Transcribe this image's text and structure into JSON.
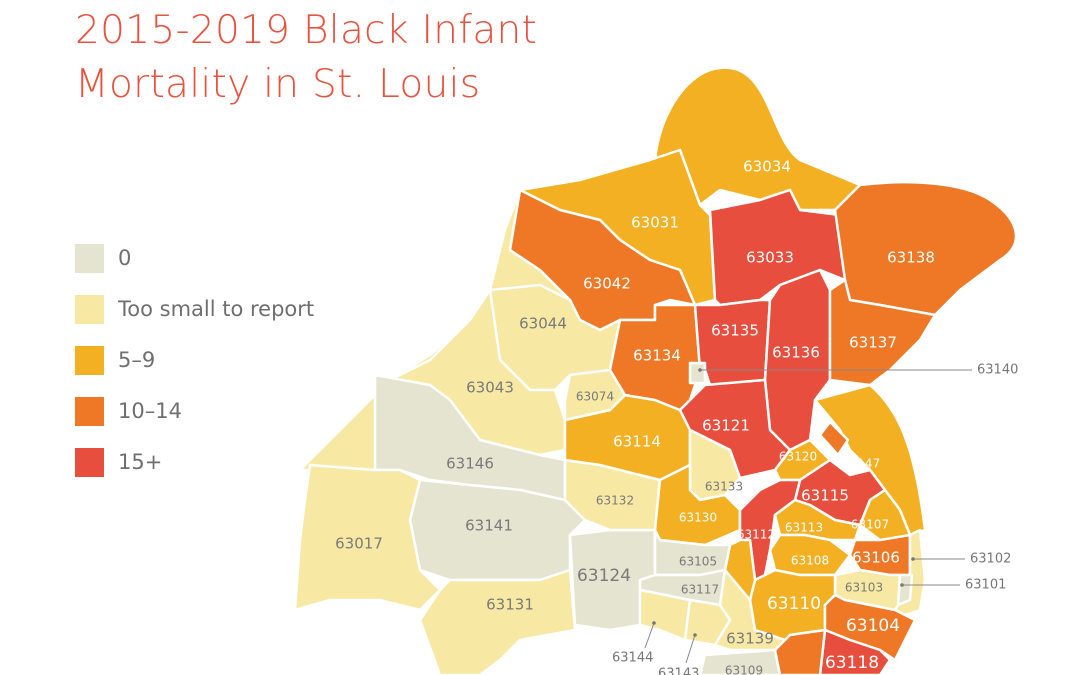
{
  "title": {
    "line1": "2015-2019 Black Infant",
    "line2": "Mortality in St. Louis"
  },
  "legend": [
    {
      "key": "zero",
      "label": "0",
      "color": "#e5e4d0"
    },
    {
      "key": "small",
      "label": "Too small to report",
      "color": "#f7e9a4"
    },
    {
      "key": "low",
      "label": "5–9",
      "color": "#f2b022"
    },
    {
      "key": "mid",
      "label": "10–14",
      "color": "#ee7826"
    },
    {
      "key": "high",
      "label": "15+",
      "color": "#e84e3d"
    }
  ],
  "label_colors": {
    "light": "#7a7a7a",
    "dark": "#ffffff"
  },
  "zips": [
    {
      "zip": "63034",
      "category": "low"
    },
    {
      "zip": "63031",
      "category": "low"
    },
    {
      "zip": "63033",
      "category": "high"
    },
    {
      "zip": "63138",
      "category": "mid"
    },
    {
      "zip": "63042",
      "category": "mid"
    },
    {
      "zip": "63044",
      "category": "small"
    },
    {
      "zip": "63043",
      "category": "small"
    },
    {
      "zip": "63146",
      "category": "zero"
    },
    {
      "zip": "63141",
      "category": "zero"
    },
    {
      "zip": "63017",
      "category": "small"
    },
    {
      "zip": "63131",
      "category": "small"
    },
    {
      "zip": "63124",
      "category": "zero"
    },
    {
      "zip": "63132",
      "category": "small"
    },
    {
      "zip": "63114",
      "category": "low"
    },
    {
      "zip": "63074",
      "category": "small"
    },
    {
      "zip": "63134",
      "category": "mid"
    },
    {
      "zip": "63135",
      "category": "high"
    },
    {
      "zip": "63140",
      "category": "zero"
    },
    {
      "zip": "63136",
      "category": "high"
    },
    {
      "zip": "63137",
      "category": "mid"
    },
    {
      "zip": "63121",
      "category": "high"
    },
    {
      "zip": "63133",
      "category": "small"
    },
    {
      "zip": "63147",
      "category": "low"
    },
    {
      "zip": "63120",
      "category": "low"
    },
    {
      "zip": "63115",
      "category": "high"
    },
    {
      "zip": "63130",
      "category": "low"
    },
    {
      "zip": "63112",
      "category": "high"
    },
    {
      "zip": "63113",
      "category": "low"
    },
    {
      "zip": "63107",
      "category": "low"
    },
    {
      "zip": "63108",
      "category": "low"
    },
    {
      "zip": "63106",
      "category": "mid"
    },
    {
      "zip": "63102",
      "category": "small"
    },
    {
      "zip": "63101",
      "category": "zero"
    },
    {
      "zip": "63103",
      "category": "small"
    },
    {
      "zip": "63110",
      "category": "low"
    },
    {
      "zip": "63105",
      "category": "zero"
    },
    {
      "zip": "63117",
      "category": "zero"
    },
    {
      "zip": "63144",
      "category": "small"
    },
    {
      "zip": "63143",
      "category": "small"
    },
    {
      "zip": "63139",
      "category": "small"
    },
    {
      "zip": "63109",
      "category": "zero"
    },
    {
      "zip": "63104",
      "category": "mid"
    },
    {
      "zip": "63118",
      "category": "high"
    }
  ],
  "unlabeled_areas": [
    {
      "category": "small"
    },
    {
      "category": "mid"
    },
    {
      "category": "mid"
    },
    {
      "category": "low"
    }
  ]
}
